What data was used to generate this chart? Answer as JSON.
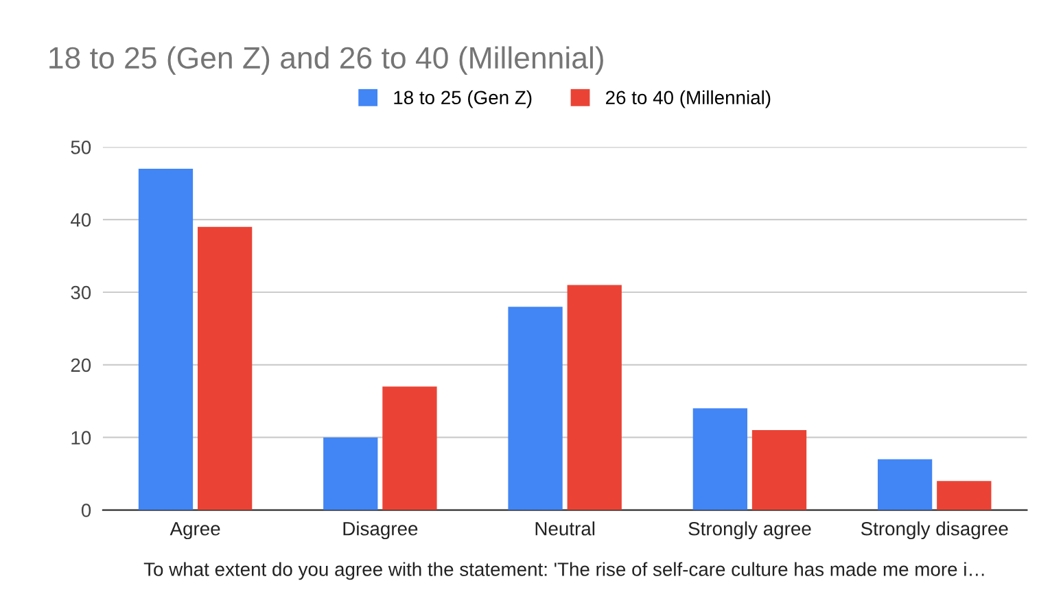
{
  "chart_data": {
    "type": "bar",
    "title": "18 to 25 (Gen Z) and 26 to 40 (Millennial)",
    "xlabel": "To what extent do you agree with the statement: 'The rise of self-care culture has made me more i…",
    "categories": [
      "Agree",
      "Disagree",
      "Neutral",
      "Strongly agree",
      "Strongly disagree"
    ],
    "series": [
      {
        "name": "18 to 25 (Gen Z)",
        "color": "#4285f4",
        "values": [
          47,
          10,
          28,
          14,
          7
        ]
      },
      {
        "name": "26 to 40 (Millennial)",
        "color": "#ea4335",
        "values": [
          39,
          17,
          31,
          11,
          4
        ]
      }
    ],
    "ylim": [
      0,
      50
    ],
    "yticks": [
      0,
      10,
      20,
      30,
      40,
      50
    ],
    "grid": "y",
    "legend": "top"
  }
}
